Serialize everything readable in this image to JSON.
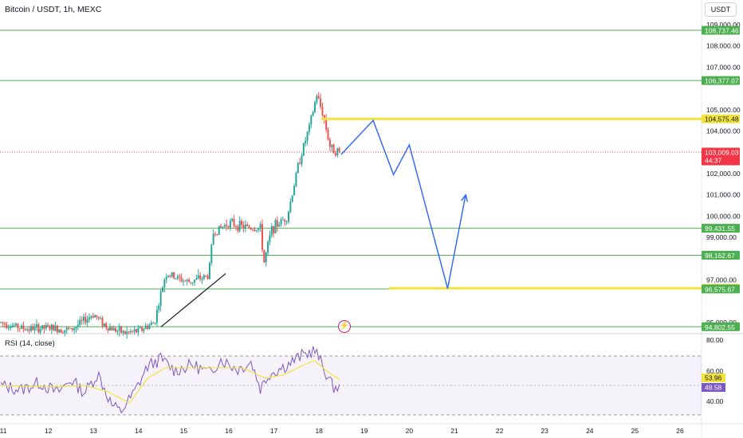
{
  "header": {
    "symbol_title": "Bitcoin / USDT, 1h, MEXC",
    "currency": "USDT"
  },
  "rsi": {
    "title": "RSI (14, close)",
    "value_label": "48.58",
    "ma_label": "53.96",
    "axis_ticks": [
      "80.00",
      "60.00",
      "40.00"
    ]
  },
  "colors": {
    "up": "#26a69a",
    "down": "#ef5350",
    "level_line": "#4caf50",
    "zone_line": "#f2e33a",
    "projection": "#2962ff",
    "rsi_line": "#7e57c2",
    "rsi_ma": "#f2e33a",
    "current_price": "#f23645"
  },
  "chart_data": {
    "type": "candlestick",
    "x_ticks": [
      "11",
      "12",
      "13",
      "14",
      "15",
      "16",
      "17",
      "18",
      "19",
      "20",
      "21",
      "22",
      "23",
      "24",
      "25",
      "26"
    ],
    "y_ticks": [
      "109,000.00",
      "108,000.00",
      "107,000.00",
      "105,000.00",
      "104,000.00",
      "102,000.00",
      "101,000.00",
      "100,000.00",
      "99,000.00",
      "97,000.00",
      "95,000.00"
    ],
    "ylim": [
      94300,
      109300
    ],
    "price_labels": [
      {
        "text": "108,737.46",
        "value": 108737.46,
        "kind": "level"
      },
      {
        "text": "106,377.07",
        "value": 106377.07,
        "kind": "level"
      },
      {
        "text": "104,575.48",
        "value": 104575.48,
        "kind": "zone"
      },
      {
        "text": "103,009.03",
        "value": 103009.03,
        "kind": "current",
        "sub": "44:37"
      },
      {
        "text": "99,431.55",
        "value": 99431.55,
        "kind": "level"
      },
      {
        "text": "98,162.67",
        "value": 98162.67,
        "kind": "level"
      },
      {
        "text": "96,610.34",
        "value": 96610.34,
        "kind": "zone"
      },
      {
        "text": "96,575.67",
        "value": 96575.67,
        "kind": "level"
      },
      {
        "text": "94,802.55",
        "value": 94802.55,
        "kind": "level"
      }
    ],
    "horizontal_levels": [
      108737.46,
      106377.07,
      99431.55,
      98162.67,
      96575.67,
      94802.55
    ],
    "zones": [
      {
        "value": 104575.48,
        "from_day": 18.05
      },
      {
        "value": 96610.34,
        "from_day": 19.55
      }
    ],
    "trendline": [
      {
        "day": 14.5,
        "price": 94800
      },
      {
        "day": 15.93,
        "price": 97300
      }
    ],
    "projection_path": [
      {
        "day": 18.49,
        "price": 102900
      },
      {
        "day": 19.2,
        "price": 104500
      },
      {
        "day": 19.65,
        "price": 101950
      },
      {
        "day": 20.0,
        "price": 103350
      },
      {
        "day": 20.85,
        "price": 96600
      },
      {
        "day": 21.25,
        "price": 101000
      }
    ],
    "candle_days_range": [
      10.95,
      18.46
    ],
    "candle_anchors": [
      [
        10.95,
        95000
      ],
      [
        11.5,
        94700
      ],
      [
        12.0,
        94750
      ],
      [
        12.5,
        94650
      ],
      [
        13.0,
        95400
      ],
      [
        13.3,
        94800
      ],
      [
        13.7,
        94500
      ],
      [
        14.0,
        94600
      ],
      [
        14.35,
        95000
      ],
      [
        14.6,
        97300
      ],
      [
        15.1,
        96900
      ],
      [
        15.55,
        97200
      ],
      [
        15.65,
        99200
      ],
      [
        16.0,
        99700
      ],
      [
        16.3,
        99500
      ],
      [
        16.7,
        99400
      ],
      [
        16.78,
        97800
      ],
      [
        16.95,
        99400
      ],
      [
        17.3,
        100000
      ],
      [
        17.55,
        102500
      ],
      [
        17.8,
        104300
      ],
      [
        17.95,
        105700
      ],
      [
        18.1,
        104700
      ],
      [
        18.25,
        103200
      ],
      [
        18.46,
        103000
      ]
    ],
    "rsi_ylim": [
      30,
      85
    ],
    "rsi_band": [
      30,
      70
    ],
    "rsi_anchors": [
      [
        10.95,
        50
      ],
      [
        11.4,
        47
      ],
      [
        11.8,
        52
      ],
      [
        12.2,
        45
      ],
      [
        12.5,
        54
      ],
      [
        12.8,
        45
      ],
      [
        13.1,
        58
      ],
      [
        13.4,
        37
      ],
      [
        13.6,
        32
      ],
      [
        13.9,
        45
      ],
      [
        14.2,
        63
      ],
      [
        14.5,
        68
      ],
      [
        14.8,
        60
      ],
      [
        15.2,
        64
      ],
      [
        15.6,
        58
      ],
      [
        15.8,
        68
      ],
      [
        16.2,
        61
      ],
      [
        16.5,
        66
      ],
      [
        16.7,
        48
      ],
      [
        16.9,
        58
      ],
      [
        17.3,
        64
      ],
      [
        17.6,
        70
      ],
      [
        17.9,
        74
      ],
      [
        18.1,
        62
      ],
      [
        18.3,
        49
      ],
      [
        18.46,
        48.6
      ]
    ],
    "rsi_ma_anchors": [
      [
        10.95,
        50
      ],
      [
        12.0,
        49
      ],
      [
        12.8,
        50
      ],
      [
        13.3,
        46
      ],
      [
        13.8,
        38
      ],
      [
        14.2,
        55
      ],
      [
        14.6,
        62
      ],
      [
        15.2,
        62
      ],
      [
        15.8,
        62
      ],
      [
        16.3,
        62
      ],
      [
        16.8,
        55
      ],
      [
        17.2,
        57
      ],
      [
        17.6,
        63
      ],
      [
        17.9,
        67
      ],
      [
        18.2,
        59
      ],
      [
        18.46,
        54
      ]
    ]
  }
}
